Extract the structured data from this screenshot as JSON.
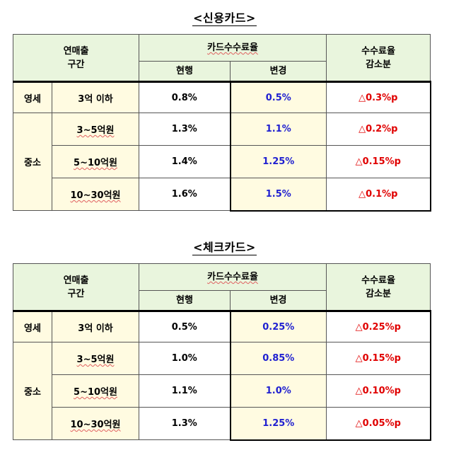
{
  "tables": [
    {
      "title": "<신용카드>",
      "header": {
        "col_group": "연매출\n구간",
        "rate_group": "카드수수료율",
        "current": "현행",
        "changed": "변경",
        "decrease": "수수료율\n감소분"
      },
      "rows": [
        {
          "category": "영세",
          "range": "3억 이하",
          "current": "0.8%",
          "changed": "0.5%",
          "decrease": "△0.3%p"
        },
        {
          "category": "중소",
          "range": "3~5억원",
          "current": "1.3%",
          "changed": "1.1%",
          "decrease": "△0.2%p"
        },
        {
          "category": "",
          "range": "5~10억원",
          "current": "1.4%",
          "changed": "1.25%",
          "decrease": "△0.15%p"
        },
        {
          "category": "",
          "range": "10~30억원",
          "current": "1.6%",
          "changed": "1.5%",
          "decrease": "△0.1%p"
        }
      ]
    },
    {
      "title": "<체크카드>",
      "header": {
        "col_group": "연매출\n구간",
        "rate_group": "카드수수료율",
        "current": "현행",
        "changed": "변경",
        "decrease": "수수료율\n감소분"
      },
      "rows": [
        {
          "category": "영세",
          "range": "3억 이하",
          "current": "0.5%",
          "changed": "0.25%",
          "decrease": "△0.25%p"
        },
        {
          "category": "중소",
          "range": "3~5억원",
          "current": "1.0%",
          "changed": "0.85%",
          "decrease": "△0.15%p"
        },
        {
          "category": "",
          "range": "5~10억원",
          "current": "1.1%",
          "changed": "1.0%",
          "decrease": "△0.10%p"
        },
        {
          "category": "",
          "range": "10~30억원",
          "current": "1.3%",
          "changed": "1.25%",
          "decrease": "△0.05%p"
        }
      ]
    }
  ],
  "colors": {
    "header_bg": "#e9f5dd",
    "category_bg": "#fffbe1",
    "changed_text": "#1f1fd0",
    "decrease_text": "#e00000"
  }
}
